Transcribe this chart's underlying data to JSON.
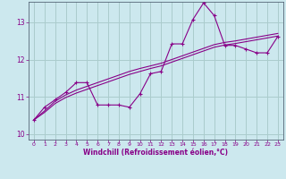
{
  "xlabel": "Windchill (Refroidissement éolien,°C)",
  "background_color": "#cce8ee",
  "grid_color": "#aacccc",
  "line_color": "#880088",
  "xlim": [
    -0.5,
    23.5
  ],
  "ylim": [
    9.85,
    13.55
  ],
  "yticks": [
    10,
    11,
    12,
    13
  ],
  "xticks": [
    0,
    1,
    2,
    3,
    4,
    5,
    6,
    7,
    8,
    9,
    10,
    11,
    12,
    13,
    14,
    15,
    16,
    17,
    18,
    19,
    20,
    21,
    22,
    23
  ],
  "curve1_x": [
    0,
    1,
    2,
    3,
    4,
    5,
    6,
    7,
    8,
    9,
    10,
    11,
    12,
    13,
    14,
    15,
    16,
    17,
    18,
    19,
    20,
    21,
    22,
    23
  ],
  "curve1_y": [
    10.38,
    10.72,
    10.92,
    11.12,
    11.38,
    11.38,
    10.78,
    10.78,
    10.78,
    10.72,
    11.08,
    11.62,
    11.68,
    12.42,
    12.42,
    13.08,
    13.52,
    13.18,
    12.38,
    12.38,
    12.28,
    12.18,
    12.18,
    12.62
  ],
  "curve2_x": [
    0,
    1,
    2,
    3,
    4,
    5,
    6,
    7,
    8,
    9,
    10,
    11,
    12,
    13,
    14,
    15,
    16,
    17,
    18,
    19,
    20,
    21,
    22,
    23
  ],
  "curve2_y": [
    10.38,
    10.62,
    10.88,
    11.05,
    11.18,
    11.28,
    11.38,
    11.48,
    11.58,
    11.68,
    11.76,
    11.83,
    11.9,
    12.0,
    12.1,
    12.2,
    12.3,
    12.4,
    12.46,
    12.5,
    12.55,
    12.6,
    12.65,
    12.7
  ],
  "curve3_x": [
    0,
    1,
    2,
    3,
    4,
    5,
    6,
    7,
    8,
    9,
    10,
    11,
    12,
    13,
    14,
    15,
    16,
    17,
    18,
    19,
    20,
    21,
    22,
    23
  ],
  "curve3_y": [
    10.38,
    10.58,
    10.82,
    10.98,
    11.1,
    11.2,
    11.3,
    11.4,
    11.5,
    11.6,
    11.68,
    11.76,
    11.83,
    11.93,
    12.03,
    12.13,
    12.23,
    12.33,
    12.39,
    12.43,
    12.48,
    12.53,
    12.58,
    12.63
  ]
}
